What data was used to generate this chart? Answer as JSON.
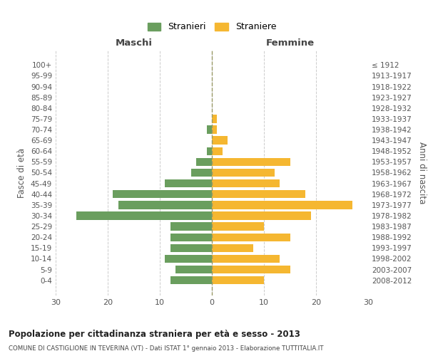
{
  "age_groups": [
    "100+",
    "95-99",
    "90-94",
    "85-89",
    "80-84",
    "75-79",
    "70-74",
    "65-69",
    "60-64",
    "55-59",
    "50-54",
    "45-49",
    "40-44",
    "35-39",
    "30-34",
    "25-29",
    "20-24",
    "15-19",
    "10-14",
    "5-9",
    "0-4"
  ],
  "birth_years": [
    "≤ 1912",
    "1913-1917",
    "1918-1922",
    "1923-1927",
    "1928-1932",
    "1933-1937",
    "1938-1942",
    "1943-1947",
    "1948-1952",
    "1953-1957",
    "1958-1962",
    "1963-1967",
    "1968-1972",
    "1973-1977",
    "1978-1982",
    "1983-1987",
    "1988-1992",
    "1993-1997",
    "1998-2002",
    "2003-2007",
    "2008-2012"
  ],
  "maschi": [
    0,
    0,
    0,
    0,
    0,
    0,
    1,
    0,
    1,
    3,
    4,
    9,
    19,
    18,
    26,
    8,
    8,
    8,
    9,
    7,
    8
  ],
  "femmine": [
    0,
    0,
    0,
    0,
    0,
    1,
    1,
    3,
    2,
    15,
    12,
    13,
    18,
    27,
    19,
    10,
    15,
    8,
    13,
    15,
    10
  ],
  "maschi_color": "#6a9e5e",
  "femmine_color": "#f5b731",
  "title": "Popolazione per cittadinanza straniera per età e sesso - 2013",
  "subtitle": "COMUNE DI CASTIGLIONE IN TEVERINA (VT) - Dati ISTAT 1° gennaio 2013 - Elaborazione TUTTITALIA.IT",
  "xlabel_left": "Maschi",
  "xlabel_right": "Femmine",
  "ylabel_left": "Fasce di età",
  "ylabel_right": "Anni di nascita",
  "legend_maschi": "Stranieri",
  "legend_femmine": "Straniere",
  "xlim": 30,
  "background_color": "#ffffff",
  "grid_color": "#cccccc"
}
